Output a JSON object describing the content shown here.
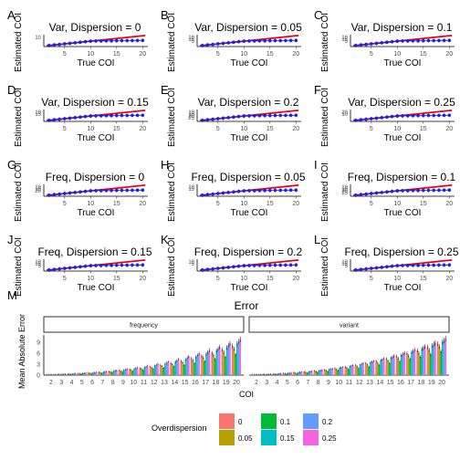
{
  "colors": {
    "red_line": "#e8000b",
    "blue_points": "#1f22e6",
    "od_0": "#f8766d",
    "od_0_05": "#b79f00",
    "od_0_1": "#00ba38",
    "od_0_15": "#00bfc4",
    "od_0_2": "#619cff",
    "od_0_25": "#f564e3"
  },
  "panels": [
    {
      "letter": "A",
      "title": "Var, Dispersion = 0",
      "yticks": [
        "10"
      ]
    },
    {
      "letter": "B",
      "title": "Var, Dispersion = 0.05",
      "yticks": [
        "10",
        "15",
        "5"
      ]
    },
    {
      "letter": "C",
      "title": "Var, Dispersion = 0.1",
      "yticks": [
        "10",
        "15",
        "5"
      ]
    },
    {
      "letter": "D",
      "title": "Var, Dispersion = 0.15",
      "yticks": [
        "10",
        "15"
      ]
    },
    {
      "letter": "E",
      "title": "Var, Dispersion = 0.2",
      "yticks": [
        "10",
        "15",
        "20",
        "25"
      ]
    },
    {
      "letter": "F",
      "title": "Var, Dispersion = 0.25",
      "yticks": [
        "20",
        "10"
      ]
    },
    {
      "letter": "G",
      "title": "Freq, Dispersion = 0",
      "yticks": [
        "10",
        "15",
        "20"
      ]
    },
    {
      "letter": "H",
      "title": "Freq, Dispersion = 0.05",
      "yticks": [
        "10",
        "15"
      ]
    },
    {
      "letter": "I",
      "title": "Freq, Dispersion = 0.1",
      "yticks": [
        "10",
        "15",
        "20",
        "25"
      ]
    },
    {
      "letter": "J",
      "title": "Freq, Dispersion = 0.15",
      "yticks": [
        "10",
        "15",
        "5"
      ]
    },
    {
      "letter": "K",
      "title": "Freq, Dispersion = 0.2",
      "yticks": [
        "10",
        "5"
      ]
    },
    {
      "letter": "L",
      "title": "Freq, Dispersion = 0.25",
      "yticks": [
        "10",
        "15",
        "5"
      ]
    }
  ],
  "small_axes": {
    "xlabel": "True COI",
    "ylabel": "Estimated COI",
    "xticks": [
      "5",
      "10",
      "15",
      "20"
    ]
  },
  "bottom": {
    "letter": "M",
    "title": "Error",
    "xlabel": "COI",
    "ylabel": "Mean Absolute Error",
    "yticks": [
      "0",
      "3",
      "6",
      "9"
    ],
    "facets": [
      "frequency",
      "variant"
    ],
    "legend_title": "Overdispersion",
    "legend_labels": [
      "0",
      "0.05",
      "0.1",
      "0.15",
      "0.2",
      "0.25"
    ]
  },
  "chart_data": [
    {
      "type": "scatter",
      "description_free": true,
      "x": [
        2,
        3,
        4,
        5,
        6,
        7,
        8,
        9,
        10,
        11,
        12,
        13,
        14,
        15,
        16,
        17,
        18,
        19,
        20
      ],
      "xlabel": "True COI",
      "ylabel": "Estimated COI",
      "xlim": [
        1,
        21
      ],
      "panels": [
        "A",
        "B",
        "C",
        "D",
        "E",
        "F",
        "G",
        "H",
        "I",
        "J",
        "K",
        "L"
      ]
    },
    {
      "type": "bar",
      "title": "Error",
      "xlabel": "COI",
      "ylabel": "Mean Absolute Error",
      "categories": [
        "2",
        "3",
        "4",
        "5",
        "6",
        "7",
        "8",
        "9",
        "10",
        "11",
        "12",
        "13",
        "14",
        "15",
        "16",
        "17",
        "18",
        "19",
        "20"
      ],
      "ylim": [
        0,
        11
      ],
      "legend_title": "Overdispersion",
      "legend_placement": "bottom",
      "facets": [
        {
          "name": "frequency",
          "series": [
            {
              "name": "0",
              "values": [
                0.1,
                0.2,
                0.3,
                0.4,
                0.6,
                0.8,
                1.0,
                1.3,
                1.6,
                1.9,
                2.3,
                2.8,
                3.3,
                3.9,
                4.6,
                5.3,
                6.1,
                7.0,
                8.0
              ]
            },
            {
              "name": "0.05",
              "values": [
                0.1,
                0.2,
                0.3,
                0.4,
                0.5,
                0.7,
                0.9,
                1.1,
                1.4,
                1.7,
                2.1,
                2.5,
                3.0,
                3.5,
                4.1,
                4.8,
                5.5,
                6.3,
                7.2
              ]
            },
            {
              "name": "0.1",
              "values": [
                0.1,
                0.1,
                0.2,
                0.3,
                0.4,
                0.5,
                0.7,
                0.9,
                1.1,
                1.4,
                1.7,
                2.0,
                2.4,
                2.8,
                3.3,
                3.8,
                4.4,
                5.0,
                5.7
              ]
            },
            {
              "name": "0.15",
              "values": [
                0.1,
                0.2,
                0.3,
                0.5,
                0.6,
                0.8,
                1.1,
                1.4,
                1.7,
                2.1,
                2.6,
                3.1,
                3.7,
                4.3,
                5.0,
                5.8,
                6.7,
                7.6,
                8.6
              ]
            },
            {
              "name": "0.2",
              "values": [
                0.1,
                0.2,
                0.4,
                0.5,
                0.7,
                0.9,
                1.2,
                1.5,
                1.9,
                2.3,
                2.8,
                3.4,
                4.0,
                4.7,
                5.5,
                6.3,
                7.2,
                8.2,
                9.2
              ]
            },
            {
              "name": "0.25",
              "values": [
                0.2,
                0.3,
                0.4,
                0.6,
                0.8,
                1.0,
                1.3,
                1.7,
                2.1,
                2.6,
                3.1,
                3.7,
                4.4,
                5.1,
                5.9,
                6.8,
                7.7,
                8.7,
                9.8
              ]
            }
          ]
        },
        {
          "name": "variant",
          "series": [
            {
              "name": "0",
              "values": [
                0.1,
                0.2,
                0.3,
                0.5,
                0.7,
                0.9,
                1.2,
                1.5,
                1.9,
                2.3,
                2.8,
                3.3,
                3.9,
                4.5,
                5.2,
                6.0,
                6.8,
                7.7,
                8.6
              ]
            },
            {
              "name": "0.05",
              "values": [
                0.1,
                0.2,
                0.3,
                0.4,
                0.6,
                0.8,
                1.0,
                1.3,
                1.6,
                2.0,
                2.4,
                2.9,
                3.4,
                4.0,
                4.6,
                5.3,
                6.1,
                6.9,
                7.8
              ]
            },
            {
              "name": "0.1",
              "values": [
                0.1,
                0.1,
                0.2,
                0.3,
                0.4,
                0.6,
                0.8,
                1.0,
                1.3,
                1.6,
                1.9,
                2.3,
                2.8,
                3.3,
                3.8,
                4.4,
                5.0,
                5.7,
                6.5
              ]
            },
            {
              "name": "0.15",
              "values": [
                0.1,
                0.2,
                0.3,
                0.5,
                0.7,
                0.9,
                1.2,
                1.6,
                2.0,
                2.4,
                2.9,
                3.5,
                4.1,
                4.8,
                5.5,
                6.3,
                7.2,
                8.1,
                9.1
              ]
            },
            {
              "name": "0.2",
              "values": [
                0.1,
                0.2,
                0.4,
                0.6,
                0.8,
                1.0,
                1.3,
                1.7,
                2.1,
                2.6,
                3.1,
                3.7,
                4.3,
                5.0,
                5.8,
                6.6,
                7.5,
                8.5,
                9.5
              ]
            },
            {
              "name": "0.25",
              "values": [
                0.2,
                0.3,
                0.4,
                0.6,
                0.9,
                1.1,
                1.4,
                1.8,
                2.2,
                2.7,
                3.3,
                3.9,
                4.6,
                5.3,
                6.1,
                7.0,
                7.9,
                8.9,
                10.0
              ]
            }
          ]
        }
      ]
    }
  ]
}
